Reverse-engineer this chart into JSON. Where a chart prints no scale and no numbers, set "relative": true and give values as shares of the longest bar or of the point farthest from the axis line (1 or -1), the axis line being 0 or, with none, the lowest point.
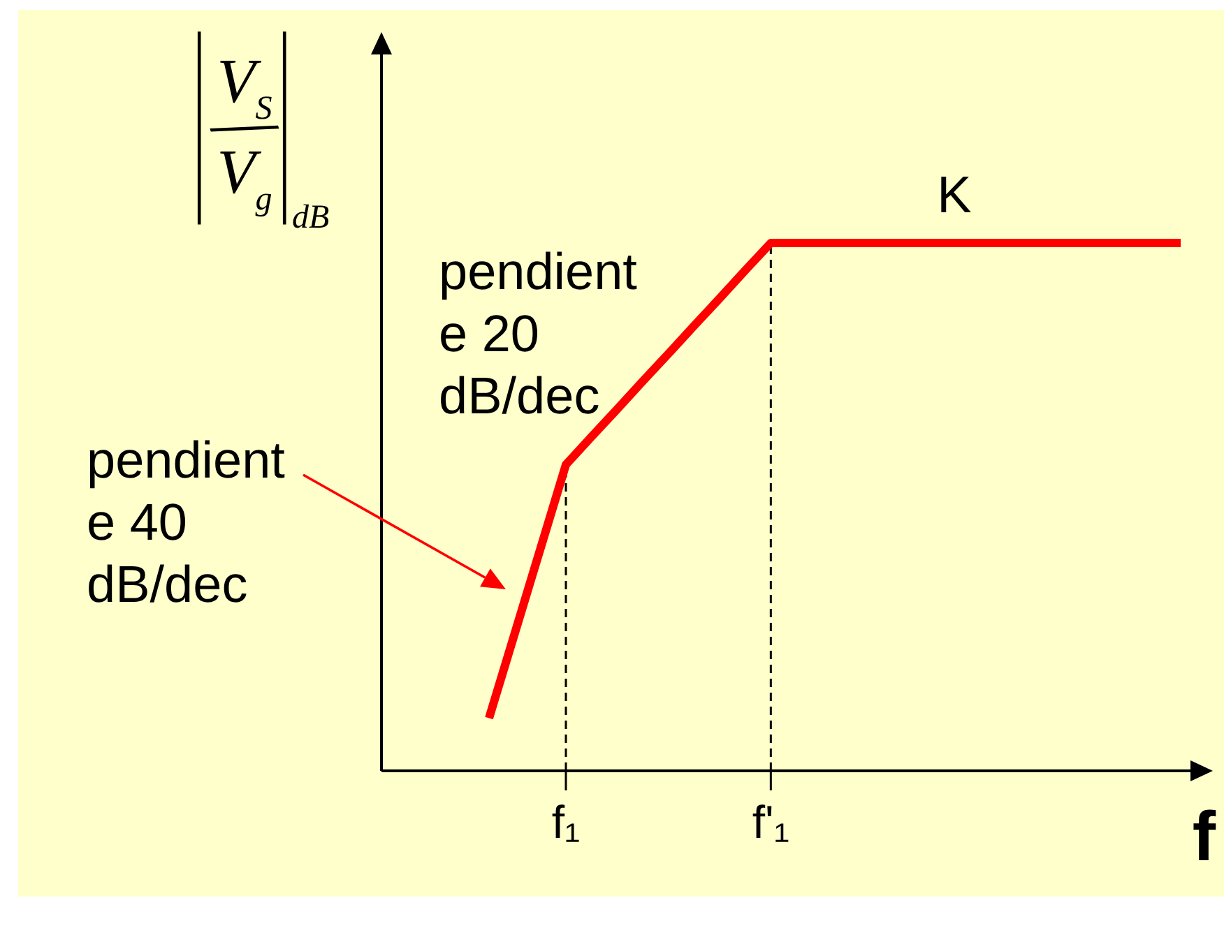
{
  "chart_data": {
    "type": "line",
    "ylabel": "|V$_{S}$/V$_{g}$|$_{dB}$",
    "xlabel": "f",
    "categories": [
      null,
      null,
      null,
      "f₁",
      null,
      null,
      null,
      null,
      null,
      null,
      null,
      "f'₁",
      null,
      null,
      null,
      null,
      null,
      null,
      null,
      null,
      null,
      null,
      null,
      null,
      null,
      null,
      null,
      null
    ],
    "relative": true,
    "series": [
      {
        "color": "#ff0000",
        "values": [
          0.1,
          0.26,
          0.42,
          0.58,
          0.633,
          0.685,
          0.738,
          0.79,
          0.843,
          0.895,
          0.948,
          1,
          1,
          1,
          1,
          1,
          1,
          1,
          1,
          1,
          1,
          1,
          1,
          1,
          1,
          1,
          1,
          1
        ]
      }
    ],
    "line_style": "solid",
    "ref_lines": [
      {
        "axis": "x",
        "value": "f₁",
        "color": "#000000",
        "line_style": "dashed"
      },
      {
        "axis": "x",
        "value": "f'₁",
        "color": "#000000",
        "line_style": "dashed"
      }
    ],
    "annotations": [
      {
        "text": "K",
        "y": 1
      },
      "pendient\ne 20\ndB/dec",
      "pendient\ne 40\ndB/dec"
    ]
  }
}
